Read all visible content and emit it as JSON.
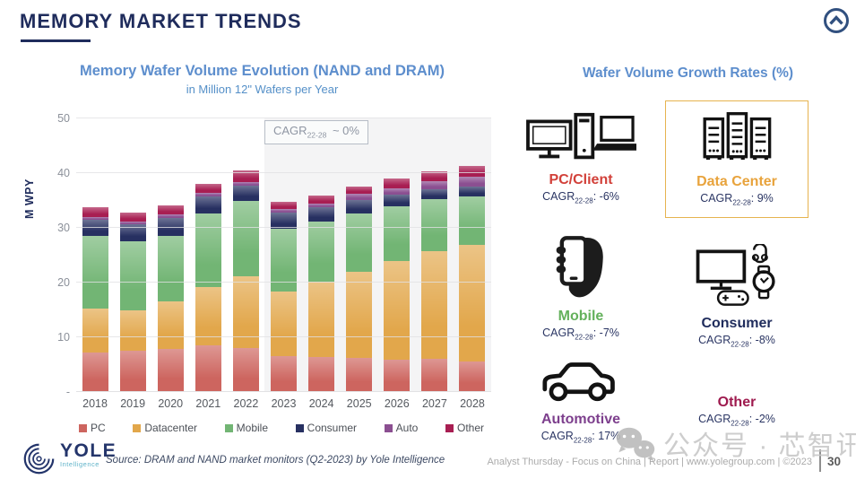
{
  "slide": {
    "title": "MEMORY MARKET TRENDS",
    "page_number": "30",
    "footer_source": "Source: DRAM and NAND market monitors (Q2-2023) by Yole Intelligence",
    "footer_right": "Analyst Thursday - Focus on China | Report | www.yolegroup.com | ©2023",
    "watermark_text": "公众号 · 芯智讯",
    "logo": {
      "name": "YOLE",
      "sub": "Intelligence"
    }
  },
  "chart": {
    "title": "Memory Wafer Volume Evolution (NAND and DRAM)",
    "subtitle": "in Million 12\" Wafers per Year",
    "cagr_badge": {
      "prefix": "CAGR",
      "sub": "22-28",
      "suffix": "~ 0%"
    }
  },
  "chart_data": {
    "type": "bar",
    "stacked": true,
    "title": "Memory Wafer Volume Evolution (NAND and DRAM)",
    "subtitle": "in Million 12\" Wafers per Year",
    "xlabel": "",
    "ylabel": "M WPY",
    "ylim": [
      0,
      50
    ],
    "grid": true,
    "legend_position": "bottom",
    "forecast_note": "CAGR 22-28 ~ 0%",
    "forecast_start_category": "2023",
    "y_ticks": {
      "values": [
        50,
        40,
        30,
        20,
        10,
        0
      ],
      "labels": [
        "50",
        "40",
        "30",
        "20",
        "10",
        "-"
      ]
    },
    "categories": [
      "2018",
      "2019",
      "2020",
      "2021",
      "2022",
      "2023",
      "2024",
      "2025",
      "2026",
      "2027",
      "2028"
    ],
    "series": [
      {
        "name": "PC",
        "color": "#cd655f",
        "values": [
          7.2,
          7.5,
          7.8,
          8.6,
          8.1,
          6.6,
          6.4,
          6.3,
          5.9,
          6.0,
          5.5
        ]
      },
      {
        "name": "Datacenter",
        "color": "#e2a74b",
        "values": [
          8.0,
          7.4,
          8.8,
          10.6,
          13.0,
          11.8,
          13.8,
          15.6,
          18.1,
          19.7,
          21.4
        ]
      },
      {
        "name": "Mobile",
        "color": "#72b574",
        "values": [
          13.4,
          12.6,
          11.9,
          13.4,
          13.8,
          11.4,
          11.0,
          10.7,
          10.0,
          9.5,
          8.9
        ]
      },
      {
        "name": "Consumer",
        "color": "#273061",
        "values": [
          2.9,
          3.1,
          3.3,
          3.2,
          2.8,
          3.0,
          2.5,
          2.5,
          2.0,
          1.9,
          1.8
        ]
      },
      {
        "name": "Auto",
        "color": "#8b4f91",
        "values": [
          0.5,
          0.5,
          0.6,
          0.6,
          0.7,
          0.7,
          0.8,
          1.1,
          1.3,
          1.5,
          1.8
        ]
      },
      {
        "name": "Other",
        "color": "#a81e52",
        "values": [
          1.8,
          1.7,
          1.7,
          1.6,
          2.1,
          1.2,
          1.4,
          1.4,
          1.7,
          1.8,
          1.9
        ]
      }
    ],
    "totals": [
      33.8,
      32.8,
      34.1,
      38.0,
      40.5,
      34.7,
      35.9,
      37.6,
      39.0,
      40.4,
      41.3
    ]
  },
  "growth": {
    "title": "Wafer Volume Growth Rates (%)",
    "cagr_prefix": "CAGR",
    "cagr_sub": "22-28",
    "cagr_sep": ": ",
    "items": [
      {
        "label": "PC/Client",
        "color": "#d2413a",
        "cagr": "-6%"
      },
      {
        "label": "Data Center",
        "color": "#e8a33c",
        "cagr": "9%",
        "highlighted": true,
        "box_color": "#e6b34f"
      },
      {
        "label": "Mobile",
        "color": "#64b15c",
        "cagr": "-7%"
      },
      {
        "label": "Consumer",
        "color": "#1f2c5c",
        "cagr": "-8%"
      },
      {
        "label": "Automotive",
        "color": "#7d3f8d",
        "cagr": "17%"
      },
      {
        "label": "Other",
        "color": "#9e1a4e",
        "cagr": "-2%"
      }
    ]
  }
}
